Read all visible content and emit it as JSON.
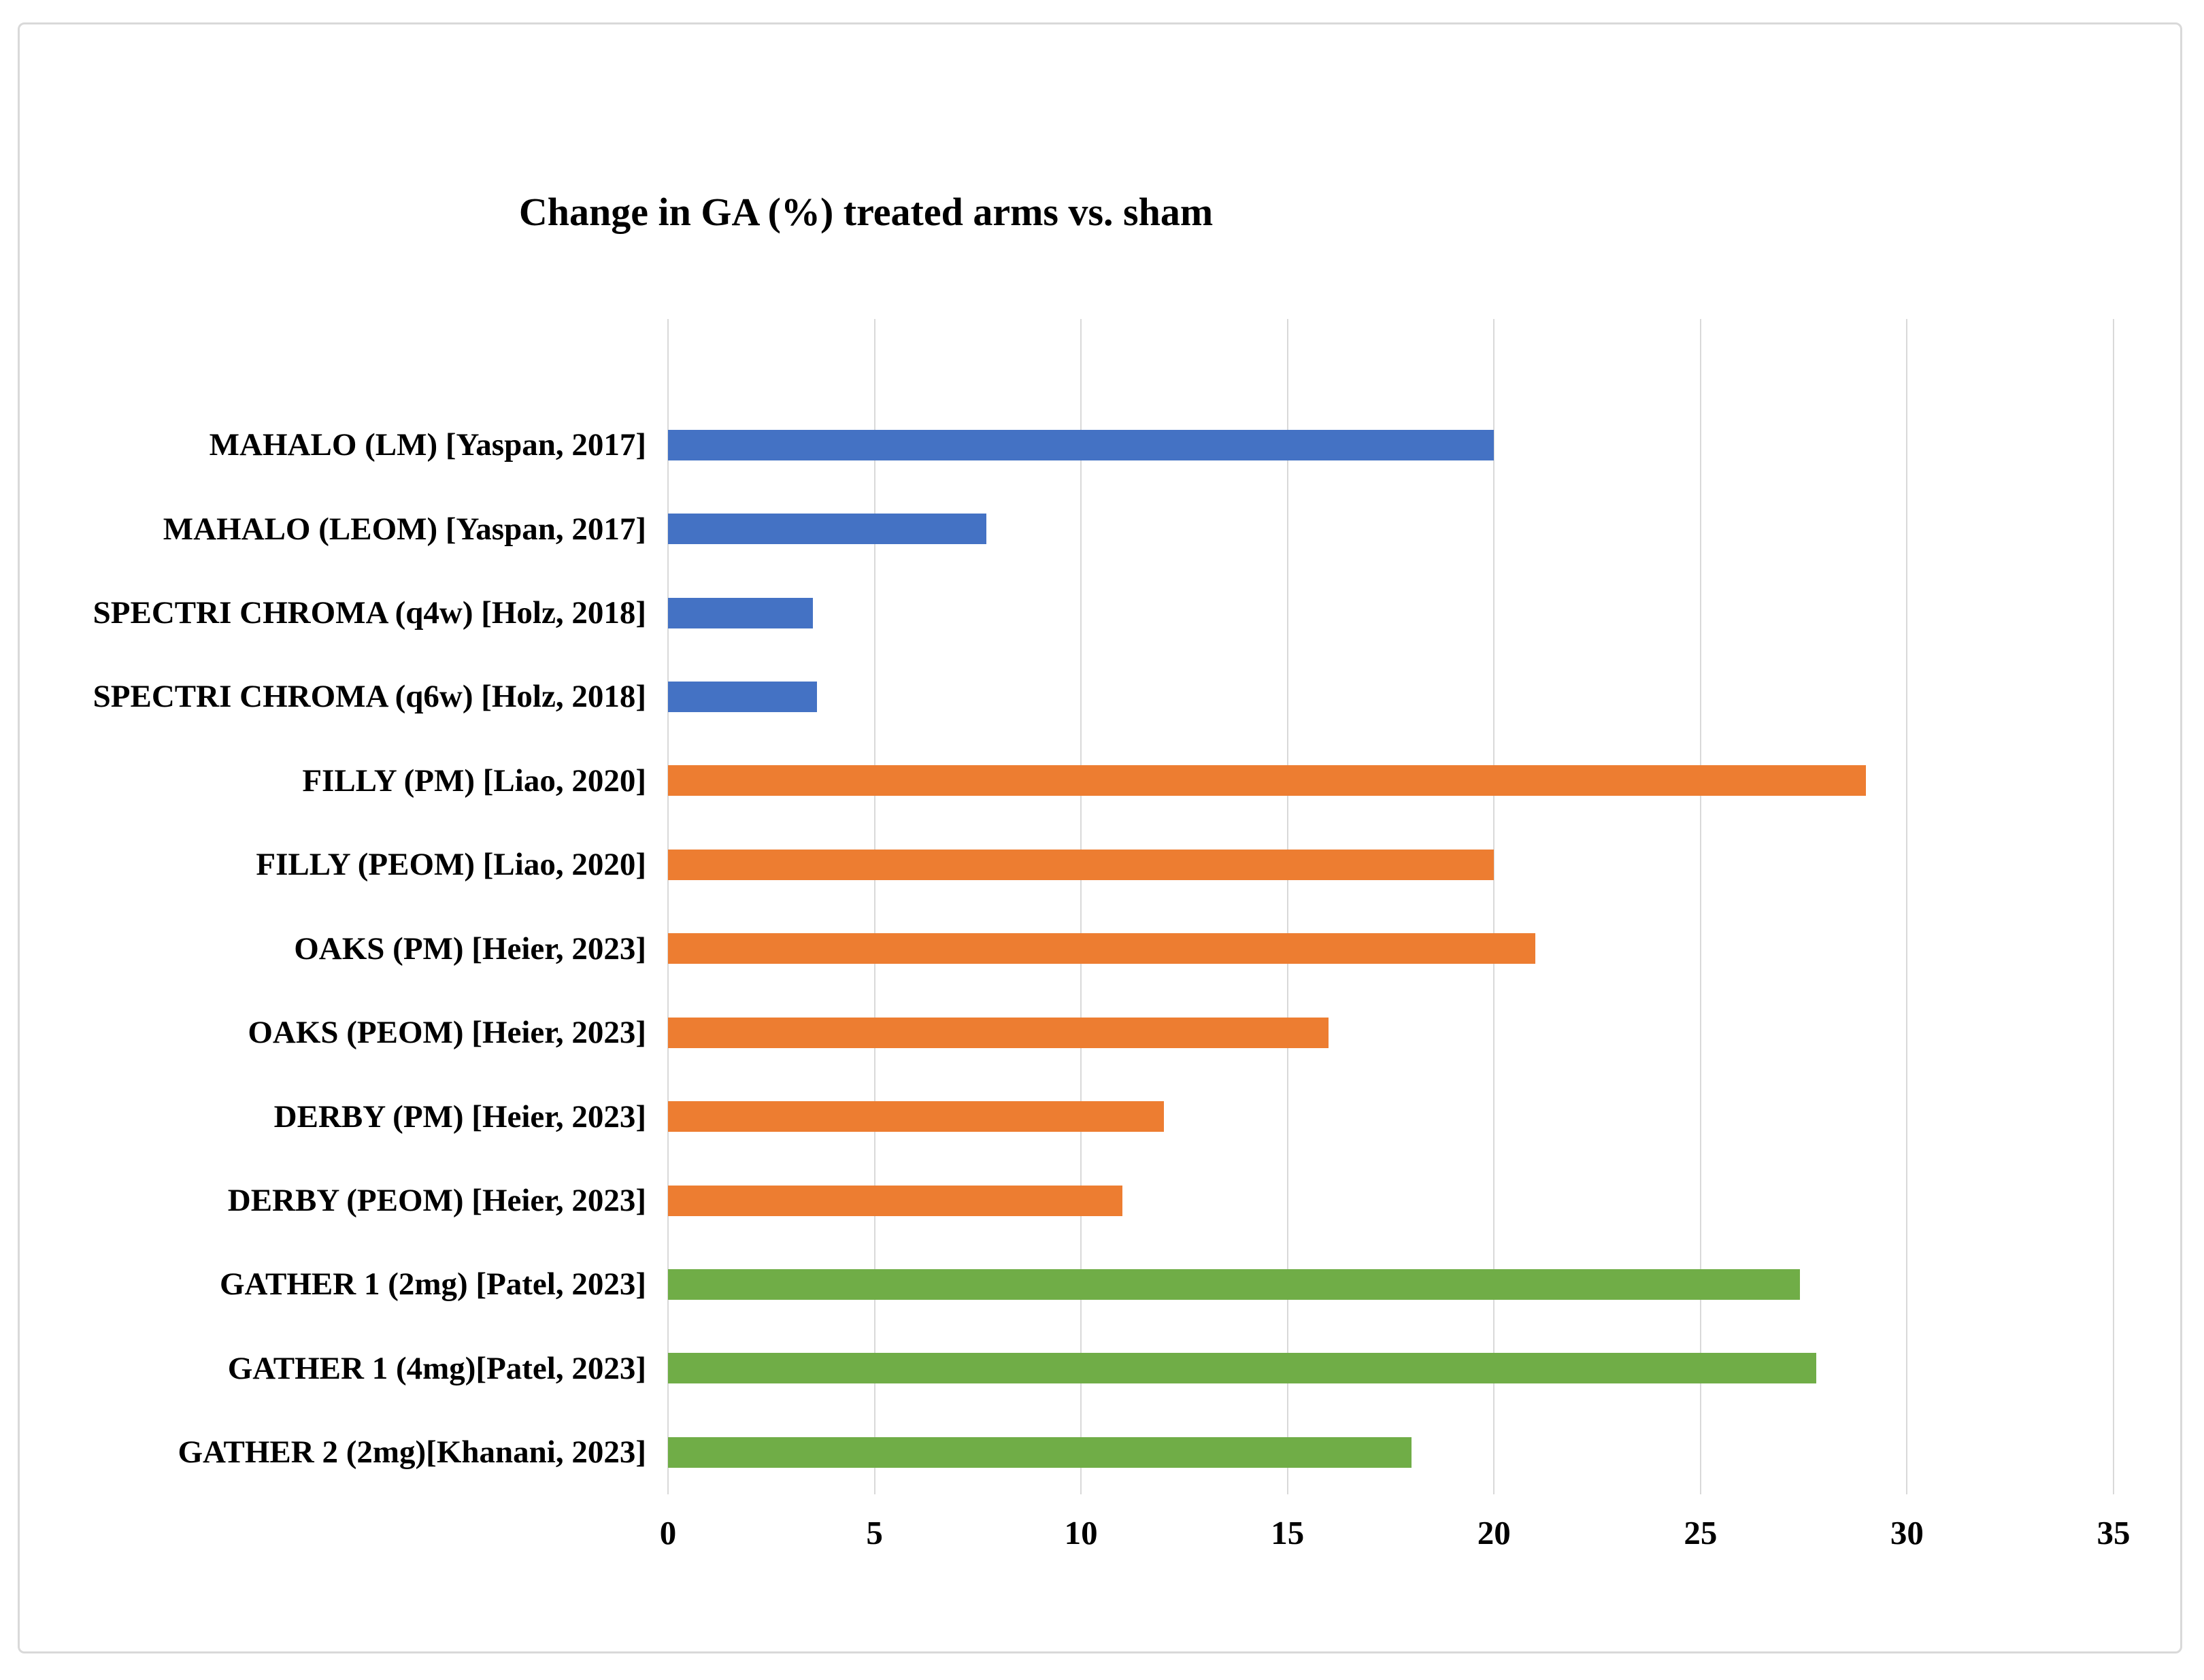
{
  "chart_data": {
    "type": "bar",
    "orientation": "horizontal",
    "title": "Change in GA (%) treated arms vs. sham",
    "categories": [
      "MAHALO (LM) [Yaspan, 2017]",
      "MAHALO (LEOM) [Yaspan, 2017]",
      "SPECTRI CHROMA (q4w) [Holz, 2018]",
      "SPECTRI CHROMA (q6w) [Holz, 2018]",
      "FILLY (PM) [Liao, 2020]",
      "FILLY (PEOM)  [Liao, 2020]",
      "OAKS (PM) [Heier, 2023]",
      "OAKS (PEOM) [Heier, 2023]",
      "DERBY (PM) [Heier, 2023]",
      "DERBY (PEOM) [Heier, 2023]",
      "GATHER 1 (2mg) [Patel, 2023]",
      "GATHER 1 (4mg)[Patel, 2023]",
      "GATHER 2 (2mg)[Khanani, 2023]"
    ],
    "values": [
      20,
      7.7,
      3.5,
      3.6,
      29,
      20,
      21,
      16,
      12,
      11,
      27.4,
      27.8,
      18
    ],
    "bar_colors": [
      "blue",
      "blue",
      "blue",
      "blue",
      "orange",
      "orange",
      "orange",
      "orange",
      "orange",
      "orange",
      "green",
      "green",
      "green"
    ],
    "x_axis": {
      "min": 0,
      "max": 35,
      "tick_step": 5,
      "tick_labels": [
        "0",
        "5",
        "10",
        "15",
        "20",
        "25",
        "30",
        "35"
      ]
    },
    "grid": "vertical-only",
    "legend": "none",
    "empty_top_slot": true,
    "palette": {
      "blue": "#4472C4",
      "orange": "#ED7D31",
      "green": "#70AD47",
      "gridline": "#D9D9D9",
      "border": "#D9D9D9",
      "text": "#000000"
    }
  }
}
